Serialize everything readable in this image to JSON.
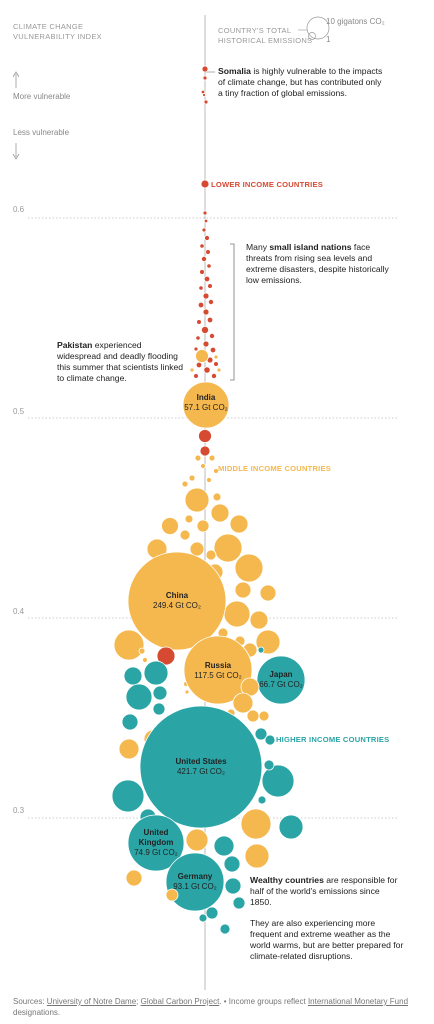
{
  "header": {
    "left_title_1": "CLIMATE CHANGE",
    "left_title_2": "VULNERABILITY INDEX",
    "right_title_1": "COUNTRY'S TOTAL",
    "right_title_2": "HISTORICAL EMISSIONS",
    "legend_large": "10 gigatons CO₂",
    "legend_small": "1",
    "more_vulnerable": "More vulnerable",
    "less_vulnerable": "Less vulnerable"
  },
  "annotations": {
    "somalia_bold": "Somalia",
    "somalia_text": " is highly vulnerable to the impacts of climate change, but has contributed only a tiny fraction of global emissions.",
    "island_pre": "Many ",
    "island_bold": "small island nations",
    "island_text": " face threats from rising sea levels and extreme disasters, despite historically low emissions.",
    "pakistan_bold": "Pakistan",
    "pakistan_text": " experienced widespread and deadly flooding this summer that scientists linked to climate change.",
    "wealthy_bold": "Wealthy countries",
    "wealthy_text": " are responsible for half of the world's emissions since 1850.",
    "wealthy_text_2": "They are also experiencing more frequent and extreme weather as the world warms, but are better prepared for climate-related disruptions."
  },
  "groups": {
    "lower": "LOWER INCOME COUNTRIES",
    "middle": "MIDDLE INCOME COUNTRIES",
    "higher": "HIGHER INCOME COUNTRIES"
  },
  "colors": {
    "lower": "#d64a32",
    "middle": "#f5b84e",
    "higher": "#2aa4a5",
    "axis": "#aaaaaa"
  },
  "footer": {
    "sources_prefix": "Sources: ",
    "source_1": "University of Notre Dame",
    "sep": "; ",
    "source_2": "Global Carbon Project",
    "dot": ". • Income groups reflect ",
    "imf_link": "International Monetary Fund",
    "suffix": " designations."
  },
  "chart_data": {
    "type": "scatter",
    "title": "",
    "xlabel": "",
    "ylabel": "Climate change vulnerability index",
    "y_ticks": [
      0.6,
      0.5,
      0.4,
      0.3
    ],
    "size_encoding": "Country's total historical emissions (Gt CO₂)",
    "labeled_countries": [
      {
        "name": "India",
        "emissions": "57.1 Gt CO₂",
        "value": 57.1,
        "group": "middle"
      },
      {
        "name": "China",
        "emissions": "249.4 Gt CO₂",
        "value": 249.4,
        "group": "middle"
      },
      {
        "name": "Russia",
        "emissions": "117.5 Gt CO₂",
        "value": 117.5,
        "group": "middle"
      },
      {
        "name": "Japan",
        "emissions": "66.7 Gt CO₂",
        "value": 66.7,
        "group": "higher"
      },
      {
        "name": "United States",
        "emissions": "421.7 Gt CO₂",
        "value": 421.7,
        "group": "higher"
      },
      {
        "name": "United Kingdom",
        "emissions": "74.9 Gt CO₂",
        "value": 74.9,
        "group": "higher"
      },
      {
        "name": "Germany",
        "emissions": "93.1 Gt CO₂",
        "value": 93.1,
        "group": "higher"
      }
    ]
  }
}
